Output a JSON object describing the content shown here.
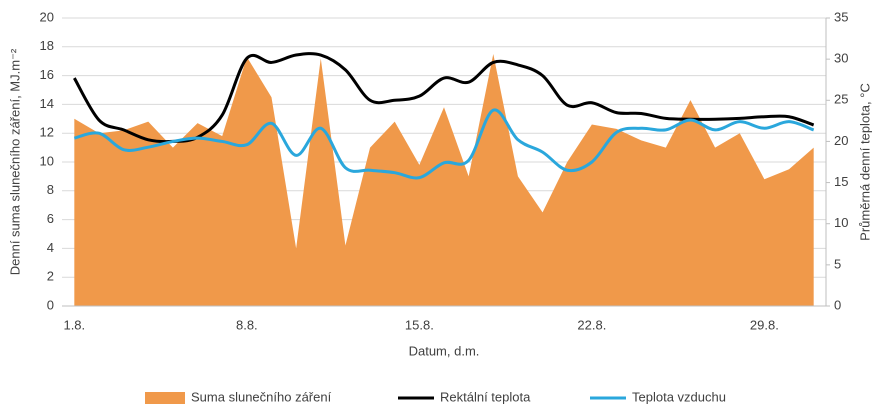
{
  "chart_data": {
    "type": "area-line",
    "categories": [
      "1.8.",
      null,
      null,
      null,
      null,
      null,
      null,
      "8.8.",
      null,
      null,
      null,
      null,
      null,
      null,
      "15.8.",
      null,
      null,
      null,
      null,
      null,
      null,
      "22.8.",
      null,
      null,
      null,
      null,
      null,
      null,
      "29.8.",
      null,
      null
    ],
    "series": [
      {
        "name": "Suma slunečního záření",
        "color": "#f0994a",
        "axis": "y",
        "kind": "area",
        "values": [
          13,
          12,
          12.2,
          12.8,
          11,
          12.7,
          11.8,
          17.3,
          14.5,
          4,
          17.2,
          4.2,
          11,
          12.8,
          9.8,
          13.8,
          9,
          17.5,
          9,
          6.5,
          10,
          12.6,
          12.3,
          11.5,
          11,
          14.3,
          11,
          12,
          8.8,
          9.5,
          11
        ]
      },
      {
        "name": "Rektální teplota",
        "color": "#000000",
        "axis": "y2",
        "kind": "line",
        "values": [
          27.7,
          22.6,
          21.4,
          20.2,
          20,
          20.5,
          23.2,
          30.1,
          29.6,
          30.5,
          30.5,
          28.7,
          25,
          25,
          25.5,
          27.7,
          27.2,
          29.6,
          29.3,
          28,
          24.4,
          24.7,
          23.5,
          23.4,
          22.8,
          22.7,
          22.7,
          22.8,
          23,
          23,
          22
        ]
      },
      {
        "name": "Teplota vzduchu",
        "color": "#2aa7dc",
        "axis": "y2",
        "kind": "line",
        "values": [
          20.4,
          21,
          19,
          19.3,
          20,
          20.4,
          20,
          19.6,
          22.2,
          18.3,
          21.6,
          16.8,
          16.5,
          16.2,
          15.6,
          17.4,
          17.7,
          23.8,
          20.2,
          18.7,
          16.5,
          17.5,
          21.1,
          21.6,
          21.4,
          22.6,
          21.4,
          22.4,
          21.6,
          22.4,
          21.4
        ]
      }
    ],
    "xlabel": "Datum, d.m.",
    "ylabel": "Denní suma slunečního záření, MJ.m⁻²",
    "y2label": "Průměrná denní teplota, °C",
    "ylim": [
      0,
      20
    ],
    "yticks": [
      0,
      2,
      4,
      6,
      8,
      10,
      12,
      14,
      16,
      18,
      20
    ],
    "y2lim": [
      0,
      35
    ],
    "y2ticks": [
      0,
      5,
      10,
      15,
      20,
      25,
      30,
      35
    ],
    "grid": true,
    "legend": "bottom"
  }
}
